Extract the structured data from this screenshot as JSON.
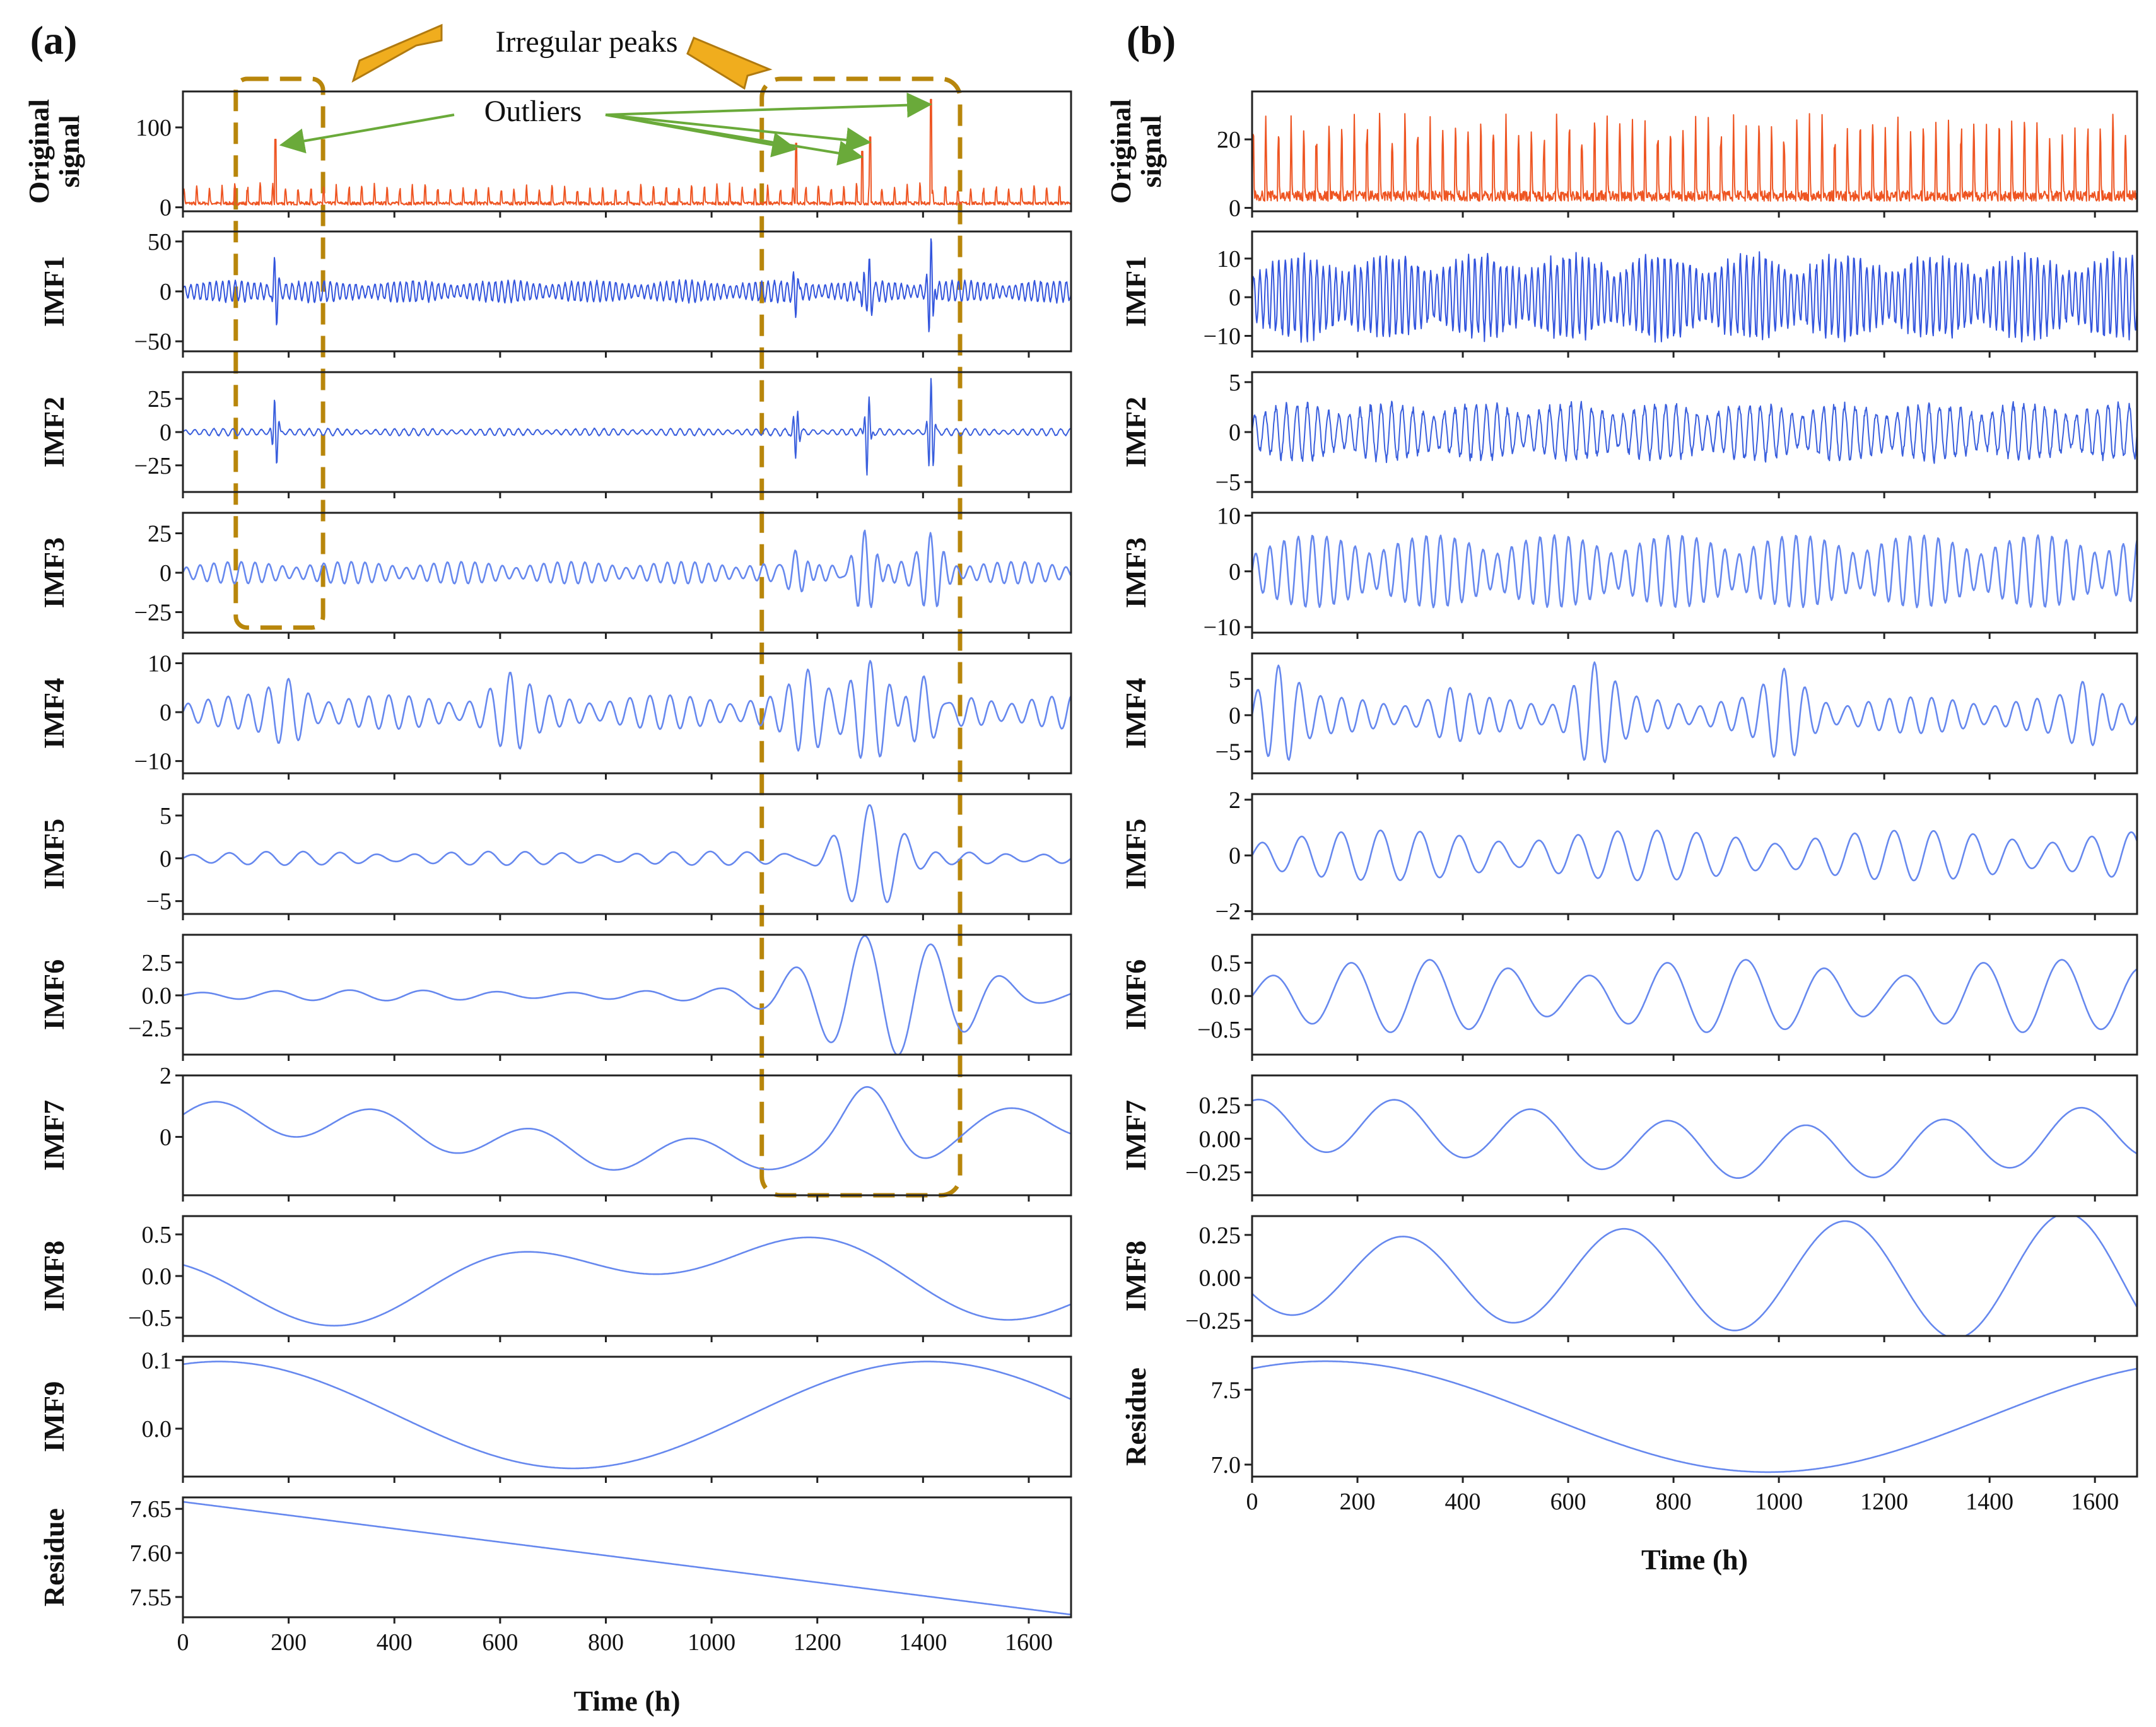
{
  "annotations": {
    "irregular_peaks": "Irregular peaks",
    "outliers": "Outliers"
  },
  "colors": {
    "original": "#ee5522",
    "imf1": "#3355dd",
    "imf2": "#3a5fdd",
    "imf_smooth": "#6688ee",
    "highlight": "#b8860b",
    "outlier_arrow": "#6aaa3a",
    "peak_arrow": "#f0ad1e"
  },
  "chart_data": [
    {
      "id": "a",
      "panel_label": "(a)",
      "type": "line",
      "xlabel": "Time (h)",
      "xlim": [
        0,
        1680
      ],
      "xticks": [
        0,
        200,
        400,
        600,
        800,
        1000,
        1200,
        1400,
        1600
      ],
      "outlier_times": [
        175,
        1160,
        1285,
        1300,
        1415
      ],
      "irregular_peak_windows": [
        [
          100,
          265
        ],
        [
          1095,
          1470
        ]
      ],
      "subplots": [
        {
          "ylabel": "Original\nsignal",
          "ylim": [
            -5,
            145
          ],
          "yticks": [
            {
              "v": 0,
              "t": "0"
            },
            {
              "v": 100,
              "t": "100"
            }
          ],
          "color": "original",
          "model": "spiky",
          "params": {
            "base": 3,
            "amp": 28,
            "period": 24,
            "noise": 4,
            "spikes": [
              [
                175,
                85
              ],
              [
                1160,
                80
              ],
              [
                1285,
                70
              ],
              [
                1300,
                88
              ],
              [
                1415,
                135
              ]
            ]
          }
        },
        {
          "ylabel": "IMF1",
          "ylim": [
            -60,
            60
          ],
          "yticks": [
            {
              "v": 50,
              "t": "50"
            },
            {
              "v": 0,
              "t": "0"
            },
            {
              "v": -50,
              "t": "−50"
            }
          ],
          "color": "imf1",
          "model": "hf",
          "params": {
            "amp": 12,
            "period": 12,
            "bursts": [
              [
                175,
                35
              ],
              [
                1160,
                22
              ],
              [
                1285,
                18
              ],
              [
                1300,
                25
              ],
              [
                1415,
                58
              ]
            ]
          }
        },
        {
          "ylabel": "IMF2",
          "ylim": [
            -45,
            45
          ],
          "yticks": [
            {
              "v": 25,
              "t": "25"
            },
            {
              "v": 0,
              "t": "0"
            },
            {
              "v": -25,
              "t": "−25"
            }
          ],
          "color": "imf2",
          "model": "hf",
          "params": {
            "amp": 3,
            "period": 18,
            "bursts": [
              [
                175,
                28
              ],
              [
                1160,
                22
              ],
              [
                1295,
                32
              ],
              [
                1415,
                42
              ]
            ]
          }
        },
        {
          "ylabel": "IMF3",
          "ylim": [
            -38,
            38
          ],
          "yticks": [
            {
              "v": 25,
              "t": "25"
            },
            {
              "v": 0,
              "t": "0"
            },
            {
              "v": -25,
              "t": "−25"
            }
          ],
          "color": "imf_smooth",
          "model": "osc",
          "params": {
            "amp": 7,
            "period": 26,
            "modp": 210,
            "bursts": [
              [
                1160,
                18
              ],
              [
                1290,
                30
              ],
              [
                1415,
                22
              ]
            ]
          }
        },
        {
          "ylabel": "IMF4",
          "ylim": [
            -12.5,
            12
          ],
          "yticks": [
            {
              "v": 10,
              "t": "10"
            },
            {
              "v": 0,
              "t": "0"
            },
            {
              "v": -10,
              "t": "−10"
            }
          ],
          "color": "imf_smooth",
          "model": "osc",
          "params": {
            "amp": 3.5,
            "period": 38,
            "modp": 260,
            "bursts": [
              [
                200,
                4
              ],
              [
                620,
                5
              ],
              [
                1180,
                7
              ],
              [
                1300,
                9
              ],
              [
                1400,
                10
              ]
            ]
          }
        },
        {
          "ylabel": "IMF5",
          "ylim": [
            -6.5,
            7.5
          ],
          "yticks": [
            {
              "v": 5,
              "t": "5"
            },
            {
              "v": 0,
              "t": "0"
            },
            {
              "v": -5,
              "t": "−5"
            }
          ],
          "color": "imf_smooth",
          "model": "osc",
          "params": {
            "amp": 0.8,
            "period": 70,
            "modp": 400,
            "bursts": [
              [
                1300,
                6.5
              ]
            ]
          }
        },
        {
          "ylabel": "IMF6",
          "ylim": [
            -4.5,
            4.6
          ],
          "yticks": [
            {
              "v": 2.5,
              "t": "2.5"
            },
            {
              "v": 0,
              "t": "0.0"
            },
            {
              "v": -2.5,
              "t": "−2.5"
            }
          ],
          "color": "imf_smooth",
          "model": "osc",
          "params": {
            "amp": 0.4,
            "period": 140,
            "modp": 700,
            "bursts": [
              [
                1300,
                4.2
              ],
              [
                1400,
                3.5
              ]
            ]
          }
        },
        {
          "ylabel": "IMF7",
          "ylim": [
            -1.9,
            2.0
          ],
          "yticks": [
            {
              "v": 2,
              "t": "2"
            },
            {
              "v": 0,
              "t": "0"
            }
          ],
          "color": "imf_smooth",
          "model": "sum",
          "params": {
            "comps": [
              [
                0.55,
                300,
                0.3
              ],
              [
                0.6,
                1700,
                1.2
              ]
            ],
            "bursts": [
              [
                1300,
                1.4
              ]
            ]
          }
        },
        {
          "ylabel": "IMF8",
          "ylim": [
            -0.72,
            0.72
          ],
          "yticks": [
            {
              "v": 0.5,
              "t": "0.5"
            },
            {
              "v": 0,
              "t": "0.0"
            },
            {
              "v": -0.5,
              "t": "−0.5"
            }
          ],
          "color": "imf_smooth",
          "model": "sum",
          "params": {
            "comps": [
              [
                0.28,
                620,
                1.75
              ],
              [
                0.32,
                1450,
                3.6
              ]
            ]
          }
        },
        {
          "ylabel": "IMF9",
          "ylim": [
            -0.07,
            0.105
          ],
          "yticks": [
            {
              "v": 0.1,
              "t": "0.1"
            },
            {
              "v": 0,
              "t": "0.0"
            }
          ],
          "color": "imf_smooth",
          "model": "sum",
          "params": {
            "offset": 0.02,
            "comps": [
              [
                0.078,
                1340,
                1.25
              ]
            ]
          }
        },
        {
          "ylabel": "Residue",
          "ylim": [
            7.527,
            7.663
          ],
          "yticks": [
            {
              "v": 7.65,
              "t": "7.65"
            },
            {
              "v": 7.6,
              "t": "7.60"
            },
            {
              "v": 7.55,
              "t": "7.55"
            }
          ],
          "color": "imf_smooth",
          "model": "linear",
          "params": {
            "y0": 7.658,
            "y1": 7.53
          }
        }
      ]
    },
    {
      "id": "b",
      "panel_label": "(b)",
      "type": "line",
      "xlabel": "Time (h)",
      "xlim": [
        0,
        1680
      ],
      "xticks": [
        0,
        200,
        400,
        600,
        800,
        1000,
        1200,
        1400,
        1600
      ],
      "subplots": [
        {
          "ylabel": "Original\nsignal",
          "ylim": [
            -1,
            34
          ],
          "yticks": [
            {
              "v": 20,
              "t": "20"
            },
            {
              "v": 0,
              "t": "0"
            }
          ],
          "color": "original",
          "model": "spiky",
          "params": {
            "base": 2,
            "amp": 26,
            "period": 24,
            "noise": 3,
            "spikes": []
          }
        },
        {
          "ylabel": "IMF1",
          "ylim": [
            -14,
            17
          ],
          "yticks": [
            {
              "v": 10,
              "t": "10"
            },
            {
              "v": 0,
              "t": "0"
            },
            {
              "v": -10,
              "t": "−10"
            }
          ],
          "color": "imf1",
          "model": "hf",
          "params": {
            "amp": 12,
            "period": 12,
            "bursts": []
          }
        },
        {
          "ylabel": "IMF2",
          "ylim": [
            -6,
            6
          ],
          "yticks": [
            {
              "v": 5,
              "t": "5"
            },
            {
              "v": 0,
              "t": "0"
            },
            {
              "v": -5,
              "t": "−5"
            }
          ],
          "color": "imf2",
          "model": "hf",
          "params": {
            "amp": 3.2,
            "period": 20,
            "bursts": []
          }
        },
        {
          "ylabel": "IMF3",
          "ylim": [
            -11,
            10.5
          ],
          "yticks": [
            {
              "v": 10,
              "t": "10"
            },
            {
              "v": 0,
              "t": "0"
            },
            {
              "v": -10,
              "t": "−10"
            }
          ],
          "color": "imf_smooth",
          "model": "osc",
          "params": {
            "amp": 6.5,
            "period": 27,
            "modp": 230,
            "bursts": []
          }
        },
        {
          "ylabel": "IMF4",
          "ylim": [
            -8,
            8.5
          ],
          "yticks": [
            {
              "v": 5,
              "t": "5"
            },
            {
              "v": 0,
              "t": "0"
            },
            {
              "v": -5,
              "t": "−5"
            }
          ],
          "color": "imf_smooth",
          "model": "osc",
          "params": {
            "amp": 2.5,
            "period": 40,
            "modp": 280,
            "bursts": [
              [
                50,
                5
              ],
              [
                380,
                3
              ],
              [
                650,
                5
              ],
              [
                1010,
                4
              ],
              [
                1580,
                4
              ]
            ]
          }
        },
        {
          "ylabel": "IMF5",
          "ylim": [
            -2.1,
            2.2
          ],
          "yticks": [
            {
              "v": 2,
              "t": "2"
            },
            {
              "v": 0,
              "t": "0"
            },
            {
              "v": -2,
              "t": "−2"
            }
          ],
          "color": "imf_smooth",
          "model": "osc",
          "params": {
            "amp": 0.9,
            "period": 75,
            "modp": 500,
            "bursts": []
          }
        },
        {
          "ylabel": "IMF6",
          "ylim": [
            -0.88,
            0.92
          ],
          "yticks": [
            {
              "v": 0.5,
              "t": "0.5"
            },
            {
              "v": 0,
              "t": "0.0"
            },
            {
              "v": -0.5,
              "t": "−0.5"
            }
          ],
          "color": "imf_smooth",
          "model": "osc",
          "params": {
            "amp": 0.55,
            "period": 150,
            "modp": 600,
            "bursts": []
          }
        },
        {
          "ylabel": "IMF7",
          "ylim": [
            -0.42,
            0.47
          ],
          "yticks": [
            {
              "v": 0.25,
              "t": "0.25"
            },
            {
              "v": 0,
              "t": "0.00"
            },
            {
              "v": -0.25,
              "t": "−0.25"
            }
          ],
          "color": "imf_smooth",
          "model": "sum",
          "params": {
            "comps": [
              [
                0.2,
                260,
                1.3
              ],
              [
                0.1,
                1800,
                1.1
              ]
            ]
          }
        },
        {
          "ylabel": "IMF8",
          "ylim": [
            -0.34,
            0.36
          ],
          "yticks": [
            {
              "v": 0.25,
              "t": "0.25"
            },
            {
              "v": 0,
              "t": "0.00"
            },
            {
              "v": -0.25,
              "t": "−0.25"
            }
          ],
          "color": "imf_smooth",
          "model": "sum",
          "params": {
            "comps": [
              [
                0.3,
                420,
                3.6
              ]
            ],
            "grow": 0.6
          }
        },
        {
          "ylabel": "Residue",
          "ylim": [
            6.92,
            7.72
          ],
          "yticks": [
            {
              "v": 7.5,
              "t": "7.5"
            },
            {
              "v": 7.0,
              "t": "7.0"
            }
          ],
          "color": "imf_smooth",
          "model": "sum",
          "params": {
            "offset": 7.32,
            "comps": [
              [
                0.37,
                1680,
                1.05
              ]
            ]
          }
        }
      ]
    }
  ]
}
